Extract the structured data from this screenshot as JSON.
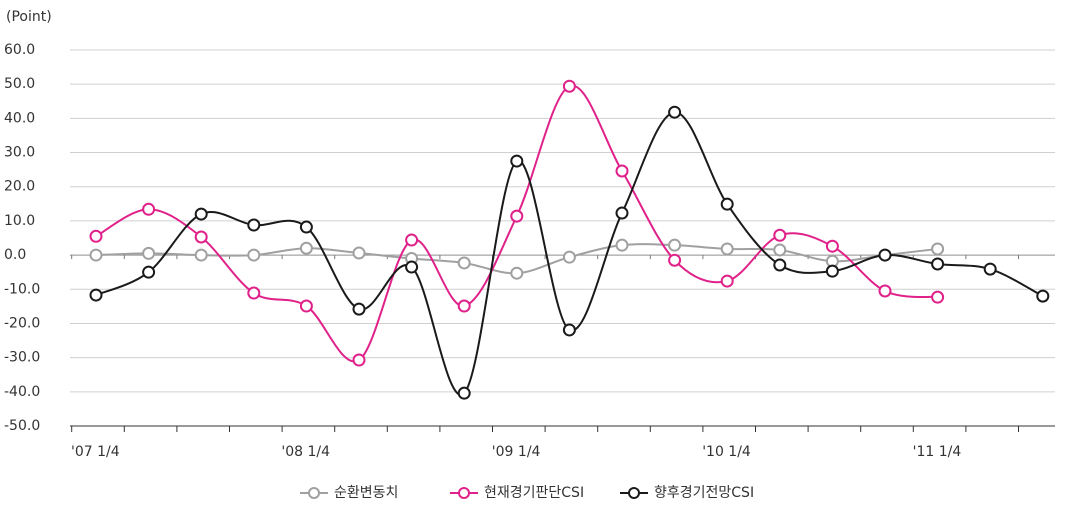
{
  "chart_data": {
    "type": "line",
    "y_label": "(Point)",
    "categories": [
      "'07 1/4",
      null,
      null,
      null,
      "'08 1/4",
      null,
      null,
      null,
      "'09 1/4",
      null,
      null,
      null,
      "'10 1/4",
      null,
      null,
      null,
      "'11 1/4",
      null,
      null
    ],
    "series": [
      {
        "name": "순환변동치",
        "color": "#a0a0a0",
        "values": [
          0,
          0.5,
          0,
          0,
          2,
          0.6,
          -1,
          -2.3,
          -5.3,
          -0.6,
          2.9,
          2.9,
          1.8,
          1.5,
          -1.8,
          0,
          1.8,
          null,
          null
        ]
      },
      {
        "name": "현재경기판단CSI",
        "color": "#e0218a",
        "values": [
          5.5,
          13.4,
          5.3,
          -11.1,
          -14.9,
          -30.7,
          4.4,
          -14.9,
          11.4,
          49.4,
          24.6,
          -1.5,
          -7.6,
          5.8,
          2.6,
          -10.5,
          -12.3,
          null,
          null
        ]
      },
      {
        "name": "향후경기전망CSI",
        "color": "#1a1a1a",
        "values": [
          -11.7,
          -5,
          12,
          8.8,
          8.2,
          -15.8,
          -3.5,
          -40.4,
          27.5,
          -21.9,
          12.3,
          41.8,
          14.9,
          -2.9,
          -4.7,
          0,
          -2.6,
          -4.1,
          -12
        ]
      }
    ],
    "ylim": [
      -50,
      60
    ],
    "yticks": [
      {
        "value": 60,
        "label": "60.0"
      },
      {
        "value": 50,
        "label": "50.0"
      },
      {
        "value": 40,
        "label": "40.0"
      },
      {
        "value": 30,
        "label": "30.0"
      },
      {
        "value": 20,
        "label": "20.0"
      },
      {
        "value": 10,
        "label": "10.0"
      },
      {
        "value": 0,
        "label": "0.0"
      },
      {
        "value": -10,
        "label": "-10.0"
      },
      {
        "value": -20,
        "label": "-20.0"
      },
      {
        "value": -30,
        "label": "-30.0"
      },
      {
        "value": -40,
        "label": "-40.0"
      },
      {
        "value": -50,
        "label": "-50.0"
      }
    ],
    "grid": true
  }
}
